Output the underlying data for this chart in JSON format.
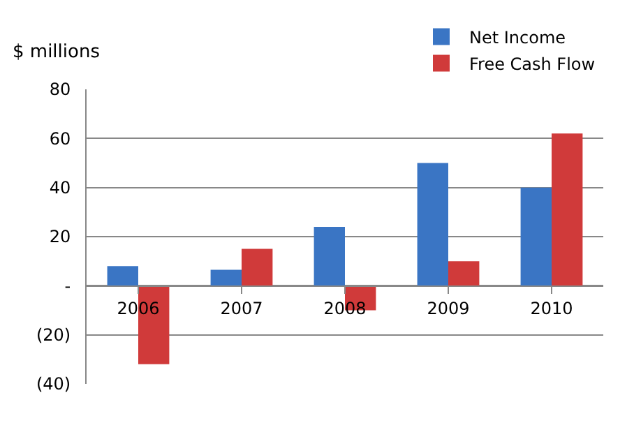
{
  "chart_data": {
    "type": "bar",
    "ylabel": "$ millions",
    "categories": [
      "2006",
      "2007",
      "2008",
      "2009",
      "2010"
    ],
    "series": [
      {
        "name": "Net Income",
        "color": "#3a75c4",
        "values": [
          8,
          6.5,
          24,
          50,
          40
        ]
      },
      {
        "name": "Free Cash Flow",
        "color": "#d03a3a",
        "values": [
          -32,
          15,
          -10,
          10,
          62
        ]
      }
    ],
    "ylim": [
      -40,
      80
    ],
    "yticks": [
      {
        "value": -40,
        "label": "(40)"
      },
      {
        "value": -20,
        "label": "(20)"
      },
      {
        "value": 0,
        "label": "-"
      },
      20,
      40,
      60,
      80
    ],
    "grid": "y",
    "legend": "top right"
  }
}
